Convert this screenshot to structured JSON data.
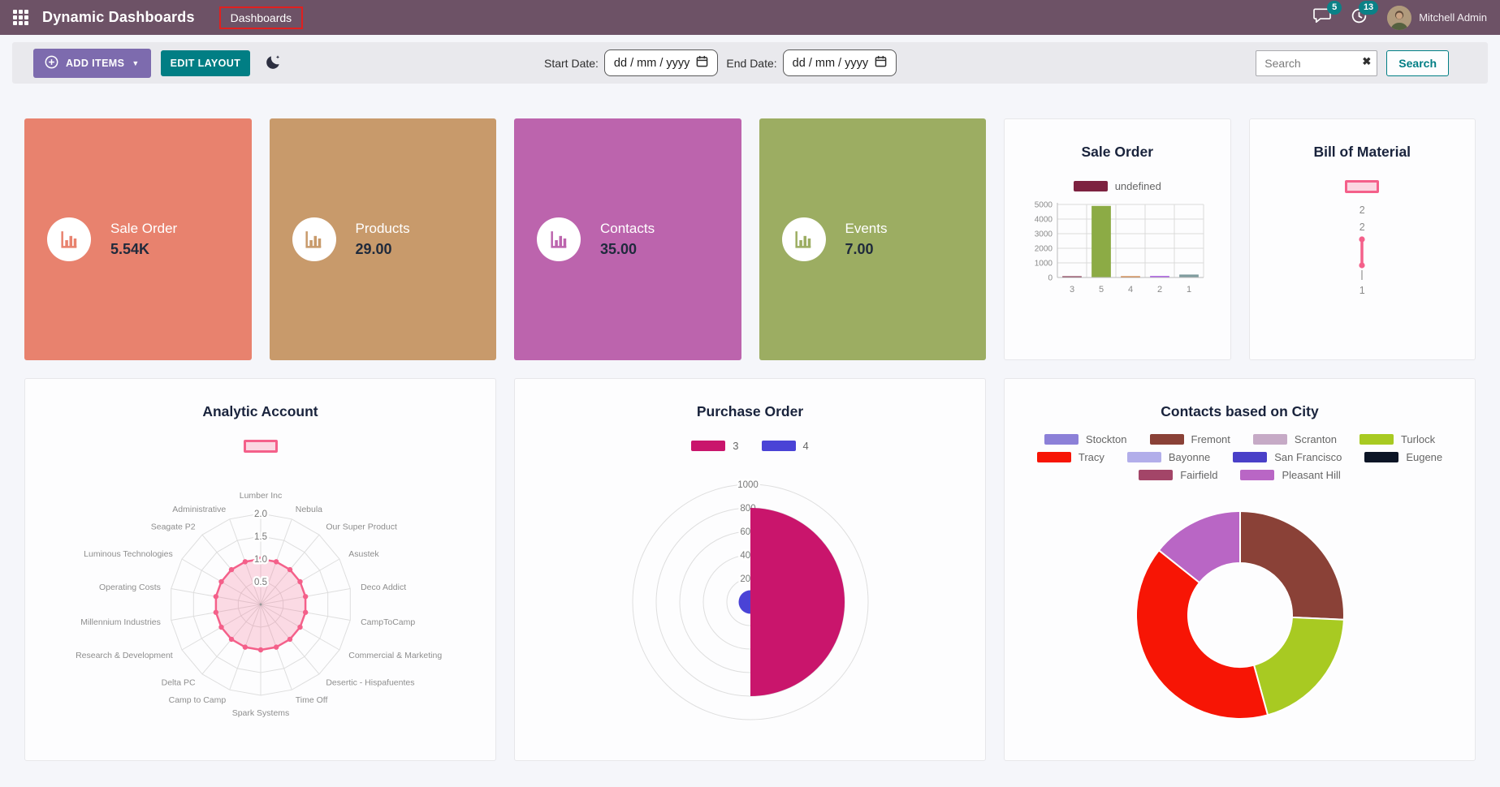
{
  "navbar": {
    "title": "Dynamic Dashboards",
    "menu_item": "Dashboards",
    "messages_badge": "5",
    "activities_badge": "13",
    "user_name": "Mitchell Admin"
  },
  "toolbar": {
    "add_items_label": "ADD ITEMS",
    "edit_layout_label": "EDIT LAYOUT",
    "start_date_label": "Start Date:",
    "end_date_label": "End Date:",
    "date_placeholder": "dd / mm / yyyy",
    "search_placeholder": "Search",
    "search_button_label": "Search"
  },
  "icons": {
    "clear_search": "✖",
    "caret_down": "▼"
  },
  "kpi_tiles": [
    {
      "label": "Sale Order",
      "value": "5.54K",
      "color": "#e8826e"
    },
    {
      "label": "Products",
      "value": "29.00",
      "color": "#c89a6b"
    },
    {
      "label": "Contacts",
      "value": "35.00",
      "color": "#bc64ad"
    },
    {
      "label": "Events",
      "value": "7.00",
      "color": "#9cad62"
    }
  ],
  "chart_data": [
    {
      "id": "sale_order_bar",
      "type": "bar",
      "title": "Sale Order",
      "legend_rows": [
        [
          {
            "label": "undefined",
            "color": "#7d2240"
          }
        ]
      ],
      "categories": [
        "3",
        "5",
        "4",
        "2",
        "1"
      ],
      "values": [
        30,
        4900,
        50,
        100,
        200
      ],
      "bar_colors": [
        "#7d2240",
        "#8cab45",
        "#cc6b1e",
        "#a44fe0",
        "#7f9c9e"
      ],
      "ylim": [
        0,
        5000
      ],
      "yticks": [
        0,
        1000,
        2000,
        3000,
        4000,
        5000
      ],
      "grid": true,
      "legend_position": "top"
    },
    {
      "id": "bill_of_material",
      "type": "line",
      "title": "Bill of Material",
      "legend_rows": [
        [
          {
            "label": "",
            "color": "#fbd7e2",
            "border": "#f4608a"
          }
        ]
      ],
      "axis_tick_labels": [
        "2",
        "2",
        "1"
      ],
      "values": [
        2,
        1
      ],
      "color": "#f4608a"
    },
    {
      "id": "analytic_account_radar",
      "type": "radar",
      "title": "Analytic Account",
      "legend_rows": [
        [
          {
            "label": "",
            "color": "#fbd7e2",
            "border": "#f4608a"
          }
        ]
      ],
      "categories": [
        "Lumber Inc",
        "Nebula",
        "Our Super Product",
        "Asustek",
        "Deco Addict",
        "CampToCamp",
        "Commercial & Marketing",
        "Desertic - Hispafuentes",
        "Time Off",
        "Spark Systems",
        "Camp to Camp",
        "Delta PC",
        "Research & Development",
        "Millennium Industries",
        "Operating Costs",
        "Luminous Technologies",
        "Seagate P2",
        "Administrative"
      ],
      "values": [
        1.0,
        1.0,
        1.0,
        1.0,
        1.0,
        1.0,
        1.0,
        1.0,
        1.0,
        1.0,
        1.0,
        1.0,
        1.0,
        1.0,
        1.0,
        1.0,
        1.0,
        1.0
      ],
      "rticks": [
        0.5,
        1.0,
        1.5,
        2.0
      ],
      "rlim": [
        0,
        2.0
      ],
      "color": "#f4608a",
      "fill": "rgba(244,96,138,0.22)",
      "grid": true,
      "legend_position": "top"
    },
    {
      "id": "purchase_order_polar",
      "type": "polar_area",
      "title": "Purchase Order",
      "legend_rows": [
        [
          {
            "label": "3",
            "color": "#c9156c"
          },
          {
            "label": "4",
            "color": "#4a43d6"
          }
        ]
      ],
      "series": [
        {
          "name": "3",
          "value": 800,
          "color": "#c9156c"
        },
        {
          "name": "4",
          "value": 100,
          "color": "#4a43d6"
        }
      ],
      "rticks": [
        200,
        400,
        600,
        800,
        1000
      ],
      "rlim": [
        0,
        1000
      ],
      "grid": true,
      "legend_position": "top"
    },
    {
      "id": "contacts_city_donut",
      "type": "pie",
      "title": "Contacts based on City",
      "donut": true,
      "legend_rows": [
        [
          {
            "label": "Stockton",
            "color": "#8c80d8"
          },
          {
            "label": "Fremont",
            "color": "#8a4137"
          },
          {
            "label": "Scranton",
            "color": "#c6aac6"
          },
          {
            "label": "Turlock",
            "color": "#a8ca22"
          }
        ],
        [
          {
            "label": "Tracy",
            "color": "#f71505"
          },
          {
            "label": "Bayonne",
            "color": "#b2aeea"
          },
          {
            "label": "San Francisco",
            "color": "#4a40c8"
          },
          {
            "label": "Eugene",
            "color": "#0c1526"
          }
        ],
        [
          {
            "label": "Fairfield",
            "color": "#a34568"
          },
          {
            "label": "Pleasant Hill",
            "color": "#b966c5"
          }
        ]
      ],
      "categories": [
        "Stockton",
        "Fremont",
        "Scranton",
        "Turlock",
        "Tracy",
        "Bayonne",
        "San Francisco",
        "Eugene",
        "Fairfield",
        "Pleasant Hill"
      ],
      "values": [
        0,
        9,
        0,
        7,
        14,
        0,
        0,
        0,
        0,
        5
      ],
      "colors": [
        "#8c80d8",
        "#8a4137",
        "#c6aac6",
        "#a8ca22",
        "#f71505",
        "#b2aeea",
        "#4a40c8",
        "#0c1526",
        "#a34568",
        "#b966c5"
      ],
      "legend_position": "top"
    }
  ]
}
